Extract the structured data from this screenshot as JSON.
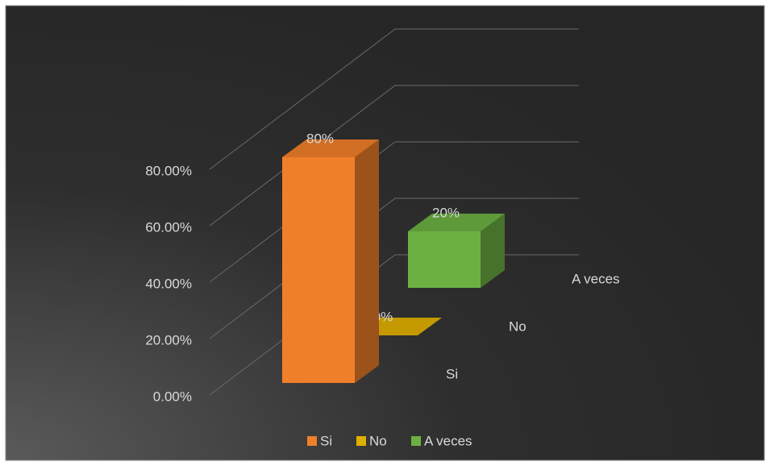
{
  "chart_data": {
    "type": "bar3d",
    "categories": [
      "Si",
      "No",
      "A veces"
    ],
    "values": [
      80,
      0,
      20
    ],
    "value_labels": [
      "80%",
      "0%",
      "20%"
    ],
    "colors": [
      "#f07f2a",
      "#e0b000",
      "#6cb042"
    ],
    "ylim": [
      0,
      80
    ],
    "yticks": [
      {
        "value": 0,
        "label": "0.00%"
      },
      {
        "value": 20,
        "label": "20.00%"
      },
      {
        "value": 40,
        "label": "40.00%"
      },
      {
        "value": 60,
        "label": "60.00%"
      },
      {
        "value": 80,
        "label": "80.00%"
      }
    ],
    "grid": true,
    "legend": "bottom"
  }
}
